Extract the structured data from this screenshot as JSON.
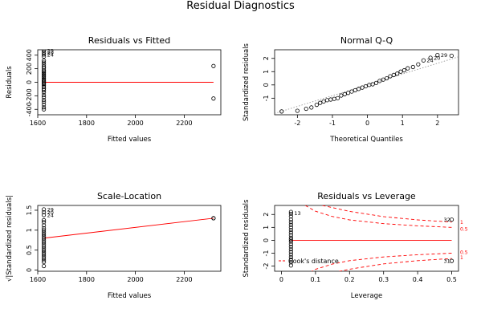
{
  "title": "Residual Diagnostics",
  "colors": {
    "fit": "#ff0000",
    "points": "#000000",
    "axes": "#000000",
    "reference": "#999999"
  },
  "chart_data": [
    {
      "id": "residuals-vs-fitted",
      "type": "scatter",
      "title": "Residuals vs Fitted",
      "xlabel": "Fitted values",
      "ylabel": "Residuals",
      "xlim": [
        1600,
        2350
      ],
      "ylim": [
        -480,
        480
      ],
      "xticks": [
        1600,
        1800,
        2000,
        2200
      ],
      "yticks": [
        -400,
        -200,
        0,
        200,
        400
      ],
      "annotations": [
        {
          "label": "29",
          "x": 1625,
          "y": 470
        },
        {
          "label": "20",
          "x": 1625,
          "y": 440
        },
        {
          "label": "24",
          "x": 1625,
          "y": 410
        }
      ],
      "points": [
        {
          "x": 1625,
          "y": 470
        },
        {
          "x": 1625,
          "y": 440
        },
        {
          "x": 1625,
          "y": 410
        },
        {
          "x": 1625,
          "y": 380
        },
        {
          "x": 1625,
          "y": 320
        },
        {
          "x": 1625,
          "y": 290
        },
        {
          "x": 1625,
          "y": 260
        },
        {
          "x": 1625,
          "y": 230
        },
        {
          "x": 1625,
          "y": 210
        },
        {
          "x": 1625,
          "y": 180
        },
        {
          "x": 1625,
          "y": 160
        },
        {
          "x": 1625,
          "y": 140
        },
        {
          "x": 1625,
          "y": 120
        },
        {
          "x": 1625,
          "y": 100
        },
        {
          "x": 1625,
          "y": 80
        },
        {
          "x": 1625,
          "y": 60
        },
        {
          "x": 1625,
          "y": 40
        },
        {
          "x": 1625,
          "y": 20
        },
        {
          "x": 1625,
          "y": 5
        },
        {
          "x": 1625,
          "y": -10
        },
        {
          "x": 1625,
          "y": -25
        },
        {
          "x": 1625,
          "y": -45
        },
        {
          "x": 1625,
          "y": -70
        },
        {
          "x": 1625,
          "y": -95
        },
        {
          "x": 1625,
          "y": -120
        },
        {
          "x": 1625,
          "y": -150
        },
        {
          "x": 1625,
          "y": -190
        },
        {
          "x": 1625,
          "y": -220
        },
        {
          "x": 1625,
          "y": -260
        },
        {
          "x": 1625,
          "y": -290
        },
        {
          "x": 1625,
          "y": -330
        },
        {
          "x": 1625,
          "y": -370
        },
        {
          "x": 1625,
          "y": -400
        },
        {
          "x": 2320,
          "y": 240
        },
        {
          "x": 2320,
          "y": -240
        }
      ],
      "lines": [
        {
          "x": [
            1625,
            2320
          ],
          "y": [
            0,
            0
          ]
        }
      ]
    },
    {
      "id": "normal-qq",
      "type": "scatter",
      "title": "Normal Q-Q",
      "xlabel": "Theoretical Quantiles",
      "ylabel": "Standardized residuals",
      "xlim": [
        -2.65,
        2.6
      ],
      "ylim": [
        -2.25,
        2.65
      ],
      "xticks": [
        -2,
        -1,
        0,
        1,
        2
      ],
      "yticks": [
        -1,
        0,
        1,
        2
      ],
      "annotations": [
        {
          "label": "29",
          "x": 2.0,
          "y": 2.25
        },
        {
          "label": "20",
          "x": 1.8,
          "y": 2.05
        },
        {
          "label": "24",
          "x": 1.6,
          "y": 1.85
        }
      ],
      "points": [
        {
          "x": -2.45,
          "y": -2.0
        },
        {
          "x": -2.0,
          "y": -1.95
        },
        {
          "x": -1.75,
          "y": -1.8
        },
        {
          "x": -1.6,
          "y": -1.7
        },
        {
          "x": -1.45,
          "y": -1.5
        },
        {
          "x": -1.35,
          "y": -1.35
        },
        {
          "x": -1.25,
          "y": -1.25
        },
        {
          "x": -1.15,
          "y": -1.15
        },
        {
          "x": -1.05,
          "y": -1.1
        },
        {
          "x": -0.95,
          "y": -1.05
        },
        {
          "x": -0.85,
          "y": -1.0
        },
        {
          "x": -0.75,
          "y": -0.8
        },
        {
          "x": -0.65,
          "y": -0.7
        },
        {
          "x": -0.55,
          "y": -0.6
        },
        {
          "x": -0.45,
          "y": -0.5
        },
        {
          "x": -0.35,
          "y": -0.4
        },
        {
          "x": -0.25,
          "y": -0.3
        },
        {
          "x": -0.15,
          "y": -0.2
        },
        {
          "x": -0.05,
          "y": -0.1
        },
        {
          "x": 0.05,
          "y": 0.0
        },
        {
          "x": 0.15,
          "y": 0.05
        },
        {
          "x": 0.25,
          "y": 0.15
        },
        {
          "x": 0.35,
          "y": 0.3
        },
        {
          "x": 0.45,
          "y": 0.4
        },
        {
          "x": 0.55,
          "y": 0.5
        },
        {
          "x": 0.65,
          "y": 0.65
        },
        {
          "x": 0.75,
          "y": 0.75
        },
        {
          "x": 0.85,
          "y": 0.85
        },
        {
          "x": 0.95,
          "y": 1.0
        },
        {
          "x": 1.05,
          "y": 1.1
        },
        {
          "x": 1.15,
          "y": 1.25
        },
        {
          "x": 1.3,
          "y": 1.35
        },
        {
          "x": 1.45,
          "y": 1.55
        },
        {
          "x": 1.6,
          "y": 1.85
        },
        {
          "x": 1.8,
          "y": 2.05
        },
        {
          "x": 2.0,
          "y": 2.25
        },
        {
          "x": 2.4,
          "y": 2.2
        }
      ],
      "lines": [
        {
          "x": [
            -2.65,
            2.6
          ],
          "y": [
            -2.15,
            2.12
          ],
          "dash": "dotted"
        }
      ]
    },
    {
      "id": "scale-location",
      "type": "scatter",
      "title": "Scale-Location",
      "xlabel": "Fitted values",
      "ylabel": "√|Standardized residuals|",
      "xlim": [
        1600,
        2350
      ],
      "ylim": [
        -0.03,
        1.62
      ],
      "xticks": [
        1600,
        1800,
        2000,
        2200
      ],
      "yticks": [
        0.0,
        0.5,
        1.0,
        1.5
      ],
      "annotations": [
        {
          "label": "29",
          "x": 1625,
          "y": 1.52
        },
        {
          "label": "20",
          "x": 1625,
          "y": 1.45
        },
        {
          "label": "24",
          "x": 1625,
          "y": 1.38
        }
      ],
      "points": [
        {
          "x": 1625,
          "y": 1.52
        },
        {
          "x": 1625,
          "y": 1.45
        },
        {
          "x": 1625,
          "y": 1.38
        },
        {
          "x": 1625,
          "y": 1.25
        },
        {
          "x": 1625,
          "y": 1.2
        },
        {
          "x": 1625,
          "y": 1.12
        },
        {
          "x": 1625,
          "y": 1.05
        },
        {
          "x": 1625,
          "y": 1.0
        },
        {
          "x": 1625,
          "y": 0.95
        },
        {
          "x": 1625,
          "y": 0.9
        },
        {
          "x": 1625,
          "y": 0.85
        },
        {
          "x": 1625,
          "y": 0.8
        },
        {
          "x": 1625,
          "y": 0.75
        },
        {
          "x": 1625,
          "y": 0.7
        },
        {
          "x": 1625,
          "y": 0.65
        },
        {
          "x": 1625,
          "y": 0.6
        },
        {
          "x": 1625,
          "y": 0.55
        },
        {
          "x": 1625,
          "y": 0.5
        },
        {
          "x": 1625,
          "y": 0.45
        },
        {
          "x": 1625,
          "y": 0.4
        },
        {
          "x": 1625,
          "y": 0.35
        },
        {
          "x": 1625,
          "y": 0.3
        },
        {
          "x": 1625,
          "y": 0.25
        },
        {
          "x": 1625,
          "y": 0.2
        },
        {
          "x": 1625,
          "y": 0.1
        },
        {
          "x": 2320,
          "y": 1.3
        },
        {
          "x": 2320,
          "y": 1.3
        }
      ],
      "lines": [
        {
          "x": [
            1625,
            2320
          ],
          "y": [
            0.8,
            1.3
          ]
        }
      ]
    },
    {
      "id": "residuals-vs-leverage",
      "type": "scatter",
      "title": "Residuals vs Leverage",
      "xlabel": "Leverage",
      "ylabel": "Standardized residuals",
      "xlim": [
        -0.02,
        0.52
      ],
      "ylim": [
        -2.4,
        2.7
      ],
      "xticks": [
        0.0,
        0.1,
        0.2,
        0.3,
        0.4,
        0.5
      ],
      "yticks": [
        -2,
        -1,
        0,
        1,
        2
      ],
      "legend": "Cook's distance",
      "annotations": [
        {
          "label": "13",
          "x": 0.028,
          "y": 2.1
        },
        {
          "label": "32",
          "x": 0.5,
          "y": 1.6
        },
        {
          "label": "31",
          "x": 0.5,
          "y": -1.6
        }
      ],
      "contour_labels": [
        {
          "label": "1",
          "x": 0.525,
          "y": 1.4
        },
        {
          "label": "0.5",
          "x": 0.525,
          "y": 0.85
        },
        {
          "label": "0.5",
          "x": 0.525,
          "y": -0.95
        },
        {
          "label": "1",
          "x": 0.525,
          "y": -1.35
        }
      ],
      "points": [
        {
          "x": 0.028,
          "y": 2.2
        },
        {
          "x": 0.028,
          "y": 2.05
        },
        {
          "x": 0.028,
          "y": 1.85
        },
        {
          "x": 0.028,
          "y": 1.6
        },
        {
          "x": 0.028,
          "y": 1.4
        },
        {
          "x": 0.028,
          "y": 1.2
        },
        {
          "x": 0.028,
          "y": 1.0
        },
        {
          "x": 0.028,
          "y": 0.8
        },
        {
          "x": 0.028,
          "y": 0.6
        },
        {
          "x": 0.028,
          "y": 0.4
        },
        {
          "x": 0.028,
          "y": 0.2
        },
        {
          "x": 0.028,
          "y": 0.05
        },
        {
          "x": 0.028,
          "y": -0.1
        },
        {
          "x": 0.028,
          "y": -0.3
        },
        {
          "x": 0.028,
          "y": -0.5
        },
        {
          "x": 0.028,
          "y": -0.7
        },
        {
          "x": 0.028,
          "y": -0.9
        },
        {
          "x": 0.028,
          "y": -1.1
        },
        {
          "x": 0.028,
          "y": -1.3
        },
        {
          "x": 0.028,
          "y": -1.5
        },
        {
          "x": 0.028,
          "y": -1.7
        },
        {
          "x": 0.028,
          "y": -1.95
        },
        {
          "x": 0.5,
          "y": 1.6
        },
        {
          "x": 0.5,
          "y": -1.6
        }
      ],
      "lines": [
        {
          "x": [
            0.028,
            0.5
          ],
          "y": [
            0,
            0
          ]
        }
      ],
      "contours": [
        {
          "x": [
            0.12,
            0.2,
            0.3,
            0.4,
            0.5
          ],
          "y": [
            2.7,
            2.24,
            1.83,
            1.58,
            1.41
          ],
          "dash": "dashed"
        },
        {
          "x": [
            0.07,
            0.1,
            0.15,
            0.2,
            0.3,
            0.4,
            0.5
          ],
          "y": [
            2.7,
            2.25,
            1.84,
            1.58,
            1.29,
            1.12,
            1.0
          ],
          "dash": "dashed"
        },
        {
          "x": [
            0.07,
            0.1,
            0.15,
            0.2,
            0.3,
            0.4,
            0.5
          ],
          "y": [
            -2.7,
            -2.25,
            -1.84,
            -1.58,
            -1.29,
            -1.12,
            -1.0
          ],
          "dash": "dashed"
        },
        {
          "x": [
            0.12,
            0.2,
            0.3,
            0.4,
            0.5
          ],
          "y": [
            -2.7,
            -2.24,
            -1.83,
            -1.58,
            -1.41
          ],
          "dash": "dashed"
        }
      ]
    }
  ]
}
